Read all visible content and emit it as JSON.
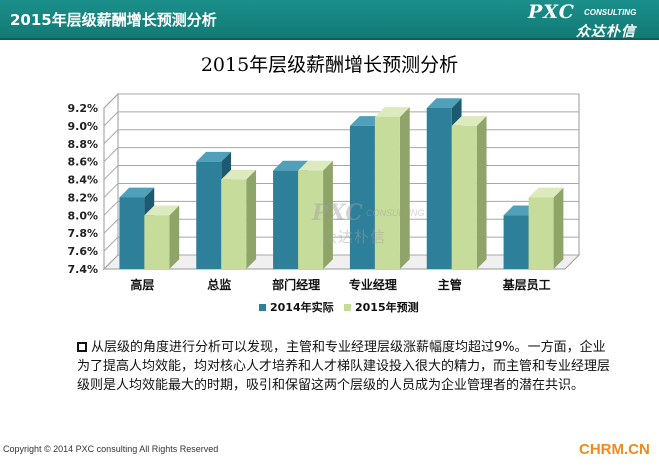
{
  "header": {
    "title": "2015年层级薪酬增长预测分析",
    "logo_main": "PXC",
    "logo_sub": "CONSULTING",
    "logo_cn": "众达朴信"
  },
  "watermark": {
    "main": "PXC",
    "sub": "CONSULTING",
    "cn": "众达朴信"
  },
  "colors": {
    "header_bg": "#1b8f8a",
    "series_2014": "#2e7f99",
    "series_2015": "#c6dc9a",
    "site_orange": "#f08a1c"
  },
  "chart_data": {
    "type": "bar",
    "title": "2015年层级薪酬增长预测分析",
    "categories": [
      "高层",
      "总监",
      "部门经理",
      "专业经理",
      "主管",
      "基层员工"
    ],
    "series": [
      {
        "name": "2014年实际",
        "values": [
          8.2,
          8.6,
          8.5,
          9.0,
          9.2,
          8.0
        ]
      },
      {
        "name": "2015年预测",
        "values": [
          8.0,
          8.4,
          8.5,
          9.1,
          9.0,
          8.2
        ]
      }
    ],
    "yticks": [
      "7.4%",
      "7.6%",
      "7.8%",
      "8.0%",
      "8.2%",
      "8.4%",
      "8.6%",
      "8.8%",
      "9.0%",
      "9.2%"
    ],
    "ylim": [
      7.4,
      9.2
    ],
    "grid": true,
    "legend_position": "bottom",
    "style": "3d-column"
  },
  "description": "从层级的角度进行分析可以发现，主管和专业经理层级涨薪幅度均超过9%。一方面，企业为了提高人均效能，均对核心人才培养和人才梯队建设投入很大的精力，而主管和专业经理层级则是人均效能最大的时期，吸引和保留这两个层级的人员成为企业管理者的潜在共识。",
  "footer": {
    "copyright": "Copyright © 2014 PXC consulting All Rights Reserved",
    "site": "CHRM.CN"
  }
}
